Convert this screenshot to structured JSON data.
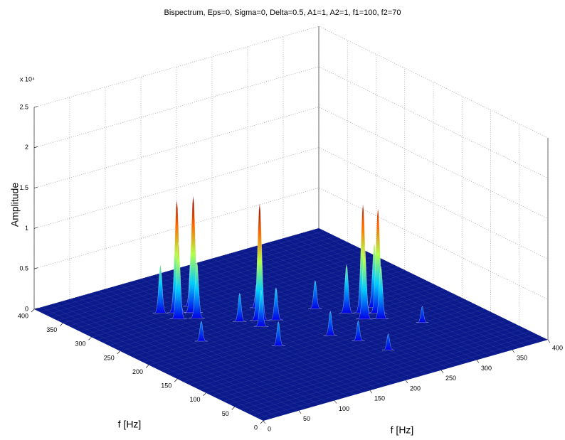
{
  "chart_data": {
    "type": "surface",
    "title": "Bispectrum, Eps=0, Sigma=0, Delta=0.5, A1=1, A2=1, f1=100, f2=70",
    "xlabel": "f [Hz]",
    "ylabel": "f [Hz]",
    "zlabel": "Amplitude",
    "z_exponent_label": "x 10⁴",
    "xlim": [
      0,
      400
    ],
    "xticks": [
      0,
      50,
      100,
      150,
      200,
      250,
      300,
      350,
      400
    ],
    "ylim": [
      0,
      400
    ],
    "yticks": [
      0,
      50,
      100,
      150,
      200,
      250,
      300,
      350,
      400
    ],
    "zlim": [
      0,
      2.5
    ],
    "zticks": [
      0,
      0.5,
      1,
      1.5,
      2,
      2.5
    ],
    "grid": true,
    "peaks": {
      "x": [
        120,
        135,
        110,
        145,
        128,
        105,
        180,
        170,
        195,
        160,
        285,
        298,
        275,
        305,
        290,
        270,
        215,
        230,
        150,
        250,
        200,
        90,
        320,
        240
      ],
      "y": [
        300,
        290,
        285,
        305,
        275,
        310,
        230,
        215,
        220,
        240,
        180,
        170,
        165,
        185,
        155,
        190,
        150,
        120,
        160,
        220,
        260,
        220,
        120,
        80
      ],
      "z": [
        1.4,
        1.45,
        0.95,
        0.85,
        0.7,
        0.6,
        1.45,
        0.45,
        0.4,
        0.35,
        1.35,
        1.3,
        0.9,
        0.8,
        0.65,
        0.6,
        0.3,
        0.25,
        0.3,
        0.35,
        0.3,
        0.25,
        0.2,
        0.2
      ]
    }
  }
}
